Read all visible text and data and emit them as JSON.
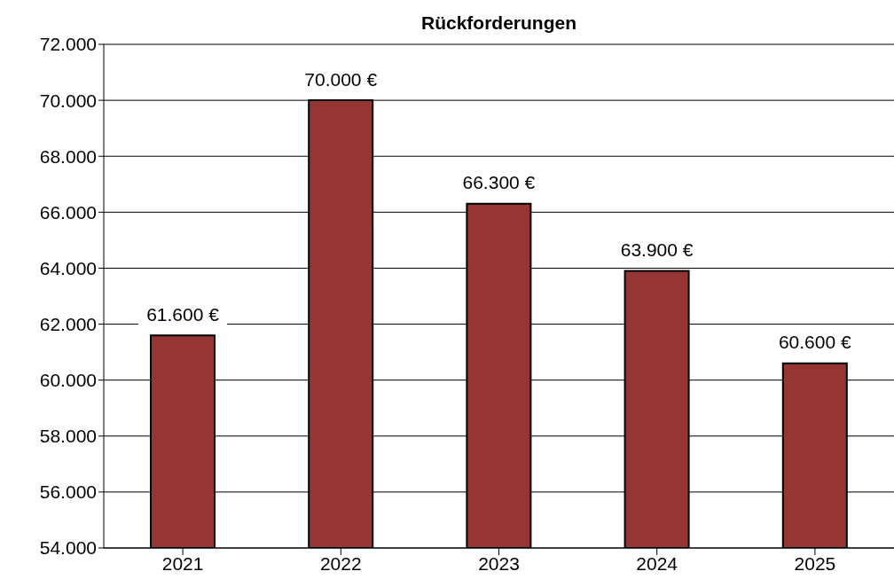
{
  "chart_data": {
    "type": "bar",
    "title": "Rückforderungen",
    "categories": [
      "2021",
      "2022",
      "2023",
      "2024",
      "2025"
    ],
    "values": [
      61600,
      70000,
      66300,
      63900,
      60600
    ],
    "value_labels": [
      "61.600 €",
      "70.000 €",
      "66.300 €",
      "63.900 €",
      "60.600 €"
    ],
    "color": "#963634",
    "ylim": [
      54000,
      72000
    ],
    "yticks": [
      {
        "value": 54000,
        "label": "54.000"
      },
      {
        "value": 56000,
        "label": "56.000"
      },
      {
        "value": 58000,
        "label": "58.000"
      },
      {
        "value": 60000,
        "label": "60.000"
      },
      {
        "value": 62000,
        "label": "62.000"
      },
      {
        "value": 64000,
        "label": "64.000"
      },
      {
        "value": 66000,
        "label": "66.000"
      },
      {
        "value": 68000,
        "label": "68.000"
      },
      {
        "value": 70000,
        "label": "70.000"
      },
      {
        "value": 72000,
        "label": "72.000"
      }
    ],
    "grid": "y",
    "legend": false
  }
}
